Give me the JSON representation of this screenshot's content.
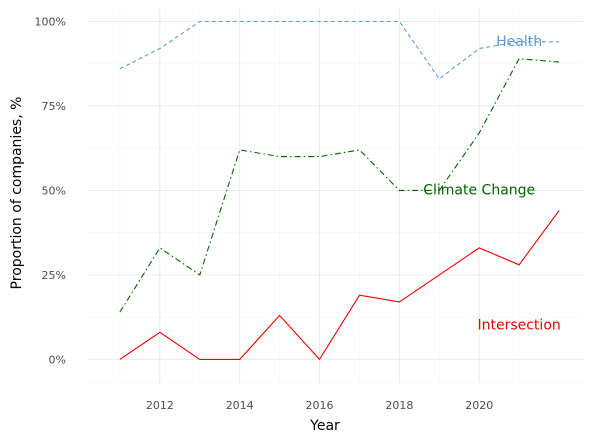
{
  "chart_data": {
    "type": "line",
    "title": "",
    "xlabel": "Year",
    "ylabel": "Proportion of companies, %",
    "x": [
      2011,
      2012,
      2013,
      2014,
      2015,
      2016,
      2017,
      2018,
      2019,
      2020,
      2021,
      2022
    ],
    "xlim": [
      2010.2,
      2022.6
    ],
    "ylim": [
      -0.07,
      1.04
    ],
    "x_ticks": [
      2012,
      2014,
      2016,
      2018,
      2020
    ],
    "x_tick_labels": [
      "2012",
      "2014",
      "2016",
      "2018",
      "2020"
    ],
    "y_ticks": [
      0,
      0.25,
      0.5,
      0.75,
      1.0
    ],
    "y_tick_labels": [
      "0%",
      "25%",
      "50%",
      "75%",
      "100%"
    ],
    "grid": true,
    "legend": "direct labels on lines",
    "series": [
      {
        "name": "Health",
        "color": "#5b9bd5",
        "dash": "dashed",
        "values": [
          0.86,
          0.92,
          1.0,
          1.0,
          1.0,
          1.0,
          1.0,
          1.0,
          0.83,
          0.92,
          0.94,
          0.94
        ],
        "label_at": [
          2021.0,
          0.94
        ]
      },
      {
        "name": "Climate Change",
        "color": "#006400",
        "dash": "dashdot",
        "values": [
          0.14,
          0.33,
          0.25,
          0.62,
          0.6,
          0.6,
          0.62,
          0.5,
          0.5,
          0.67,
          0.89,
          0.88
        ],
        "label_at": [
          2020.0,
          0.5
        ]
      },
      {
        "name": "Intersection",
        "color": "#ee0000",
        "dash": "solid",
        "values": [
          0.0,
          0.08,
          0.0,
          0.0,
          0.13,
          0.0,
          0.19,
          0.17,
          0.25,
          0.33,
          0.28,
          0.44
        ],
        "label_at": [
          2021.0,
          0.1
        ]
      }
    ]
  }
}
